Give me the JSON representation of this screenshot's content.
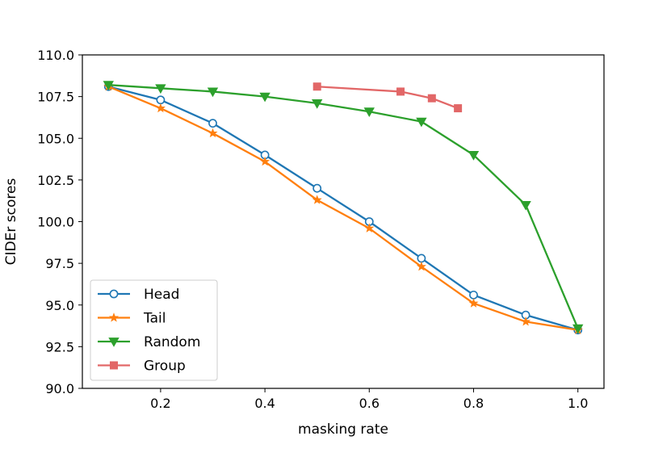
{
  "chart_data": {
    "type": "line",
    "title": "",
    "xlabel": "masking rate",
    "ylabel": "CIDEr scores",
    "xlim": [
      0.05,
      1.05
    ],
    "ylim": [
      90.0,
      110.0
    ],
    "xticks": [
      0.2,
      0.4,
      0.6,
      0.8,
      1.0
    ],
    "xtick_labels": [
      "0.2",
      "0.4",
      "0.6",
      "0.8",
      "1.0"
    ],
    "yticks": [
      90.0,
      92.5,
      95.0,
      97.5,
      100.0,
      102.5,
      105.0,
      107.5,
      110.0
    ],
    "ytick_labels": [
      "90.0",
      "92.5",
      "95.0",
      "97.5",
      "100.0",
      "102.5",
      "105.0",
      "107.5",
      "110.0"
    ],
    "grid": false,
    "legend_position": "lower-left",
    "series": [
      {
        "name": "Head",
        "color": "#1f77b4",
        "marker": "circle-open",
        "x": [
          0.1,
          0.2,
          0.3,
          0.4,
          0.5,
          0.6,
          0.7,
          0.8,
          0.9,
          1.0
        ],
        "y": [
          108.1,
          107.3,
          105.9,
          104.0,
          102.0,
          100.0,
          97.8,
          95.6,
          94.4,
          93.5
        ]
      },
      {
        "name": "Tail",
        "color": "#ff7f0e",
        "marker": "star",
        "x": [
          0.1,
          0.2,
          0.3,
          0.4,
          0.5,
          0.6,
          0.7,
          0.8,
          0.9,
          1.0
        ],
        "y": [
          108.1,
          106.8,
          105.3,
          103.6,
          101.3,
          99.6,
          97.3,
          95.1,
          94.0,
          93.5
        ]
      },
      {
        "name": "Random",
        "color": "#2ca02c",
        "marker": "triangle-down",
        "x": [
          0.1,
          0.2,
          0.3,
          0.4,
          0.5,
          0.6,
          0.7,
          0.8,
          0.9,
          1.0
        ],
        "y": [
          108.2,
          108.0,
          107.8,
          107.5,
          107.1,
          106.6,
          106.0,
          104.0,
          101.0,
          93.6
        ]
      },
      {
        "name": "Group",
        "color": "#d62728",
        "marker": "square",
        "opacity": 0.7,
        "x": [
          0.5,
          0.66,
          0.72,
          0.77
        ],
        "y": [
          108.1,
          107.8,
          107.4,
          106.8
        ]
      }
    ]
  }
}
